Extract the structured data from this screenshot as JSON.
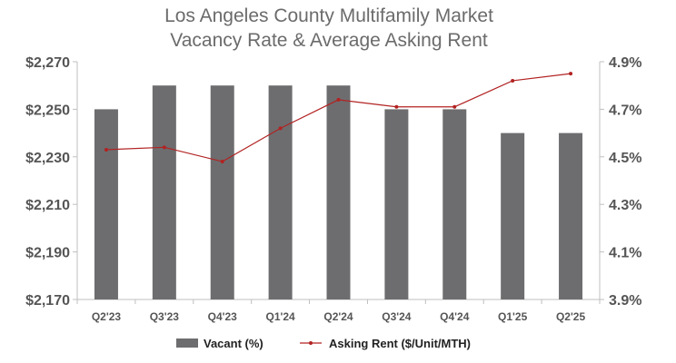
{
  "chart_data": {
    "type": "bar",
    "title_lines": [
      "Los Angeles County Multifamily Market",
      "Vacancy Rate & Average Asking Rent"
    ],
    "categories": [
      "Q2'23",
      "Q3'23",
      "Q4'23",
      "Q1'24",
      "Q2'24",
      "Q3'24",
      "Q4'24",
      "Q1'25",
      "Q2'25"
    ],
    "series": [
      {
        "name": "Vacant (%)",
        "kind": "bar",
        "axis": "left",
        "color": "#6d6d6f",
        "values": [
          2250,
          2260,
          2260,
          2260,
          2260,
          2250,
          2250,
          2240,
          2240
        ]
      },
      {
        "name": "Asking Rent ($/Unit/MTH)",
        "kind": "line",
        "axis": "right",
        "color": "#b22222",
        "values": [
          4.53,
          4.54,
          4.48,
          4.62,
          4.74,
          4.71,
          4.71,
          4.82,
          4.85
        ]
      }
    ],
    "y_left": {
      "ylim": [
        2170,
        2270
      ],
      "ticks": [
        2270,
        2250,
        2230,
        2210,
        2190,
        2170
      ],
      "tick_labels": [
        "$2,270",
        "$2,250",
        "$2,230",
        "$2,210",
        "$2,190",
        "$2,170"
      ]
    },
    "y_right": {
      "ylim": [
        3.9,
        4.9
      ],
      "ticks": [
        4.9,
        4.7,
        4.5,
        4.3,
        4.1,
        3.9
      ],
      "tick_labels": [
        "4.9%",
        "4.7%",
        "4.5%",
        "4.3%",
        "4.1%",
        "3.9%"
      ]
    },
    "grid": false,
    "legend_position": "bottom-center"
  }
}
